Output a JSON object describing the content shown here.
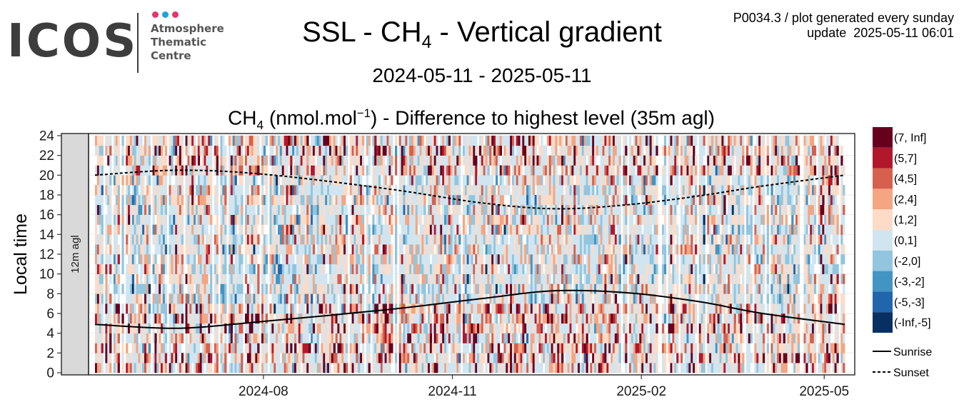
{
  "logo": {
    "text": "ICOS",
    "subtitle": "Atmosphere\nThematic\nCentre",
    "dot_colors": [
      "#e8336d",
      "#1aa3e1",
      "#e8336d"
    ]
  },
  "header": {
    "title_main": "SSL - CH",
    "title_sub": "4",
    "title_rest": " - Vertical gradient",
    "meta_line1": "P0034.3 / plot generated every sunday",
    "meta_line2": "update  2025-05-11 06:01",
    "date_range": "2024-05-11 - 2025-05-11",
    "plot_title_a": "CH",
    "plot_title_sub": "4",
    "plot_title_b": " (nmol.mol",
    "plot_title_sup": "−1",
    "plot_title_c": ") - Difference to highest level (35m agl)"
  },
  "chart_data": {
    "type": "heatmap",
    "facet_label": "12m agl",
    "ylabel": "Local time",
    "x_range": [
      "2024-05-11",
      "2025-05-11"
    ],
    "x_ticks": [
      "2024-08",
      "2024-11",
      "2025-02",
      "2025-05"
    ],
    "x_tick_dates": [
      "2024-08-01",
      "2024-11-01",
      "2025-02-01",
      "2025-05-01"
    ],
    "ylim": [
      0,
      24
    ],
    "y_ticks": [
      0,
      2,
      4,
      6,
      8,
      10,
      12,
      14,
      16,
      18,
      20,
      22,
      24
    ],
    "legend": [
      {
        "label": "(7, Inf]",
        "color": "#67001f"
      },
      {
        "label": "(5,7]",
        "color": "#b2182b"
      },
      {
        "label": "(4,5]",
        "color": "#d6604d"
      },
      {
        "label": "(2,4]",
        "color": "#f4a582"
      },
      {
        "label": "(1,2]",
        "color": "#fddbc7"
      },
      {
        "label": "(0,1]",
        "color": "#d1e5f0"
      },
      {
        "label": "(-2,0]",
        "color": "#92c5de"
      },
      {
        "label": "(-3,-2]",
        "color": "#4393c3"
      },
      {
        "label": "(-5,-3]",
        "color": "#2166ac"
      },
      {
        "label": "(-Inf,-5]",
        "color": "#053061"
      }
    ],
    "lines": [
      {
        "name": "Sunrise",
        "style": "solid",
        "points": [
          [
            "2024-05-11",
            4.9
          ],
          [
            "2024-06-20",
            4.5
          ],
          [
            "2024-08-01",
            5.2
          ],
          [
            "2024-10-01",
            6.4
          ],
          [
            "2024-11-15",
            7.5
          ],
          [
            "2024-12-21",
            8.3
          ],
          [
            "2025-01-25",
            8.1
          ],
          [
            "2025-03-01",
            7.2
          ],
          [
            "2025-04-01",
            6.0
          ],
          [
            "2025-05-11",
            4.9
          ]
        ]
      },
      {
        "name": "Sunset",
        "style": "dashed",
        "points": [
          [
            "2024-05-11",
            20.0
          ],
          [
            "2024-06-20",
            20.5
          ],
          [
            "2024-08-01",
            20.1
          ],
          [
            "2024-10-01",
            18.6
          ],
          [
            "2024-11-15",
            17.2
          ],
          [
            "2024-12-21",
            16.6
          ],
          [
            "2025-01-25",
            17.0
          ],
          [
            "2025-03-01",
            17.9
          ],
          [
            "2025-04-01",
            18.9
          ],
          [
            "2025-05-11",
            20.0
          ]
        ]
      }
    ],
    "legend_lines": [
      "Sunrise",
      "Sunset"
    ],
    "grid": true
  }
}
